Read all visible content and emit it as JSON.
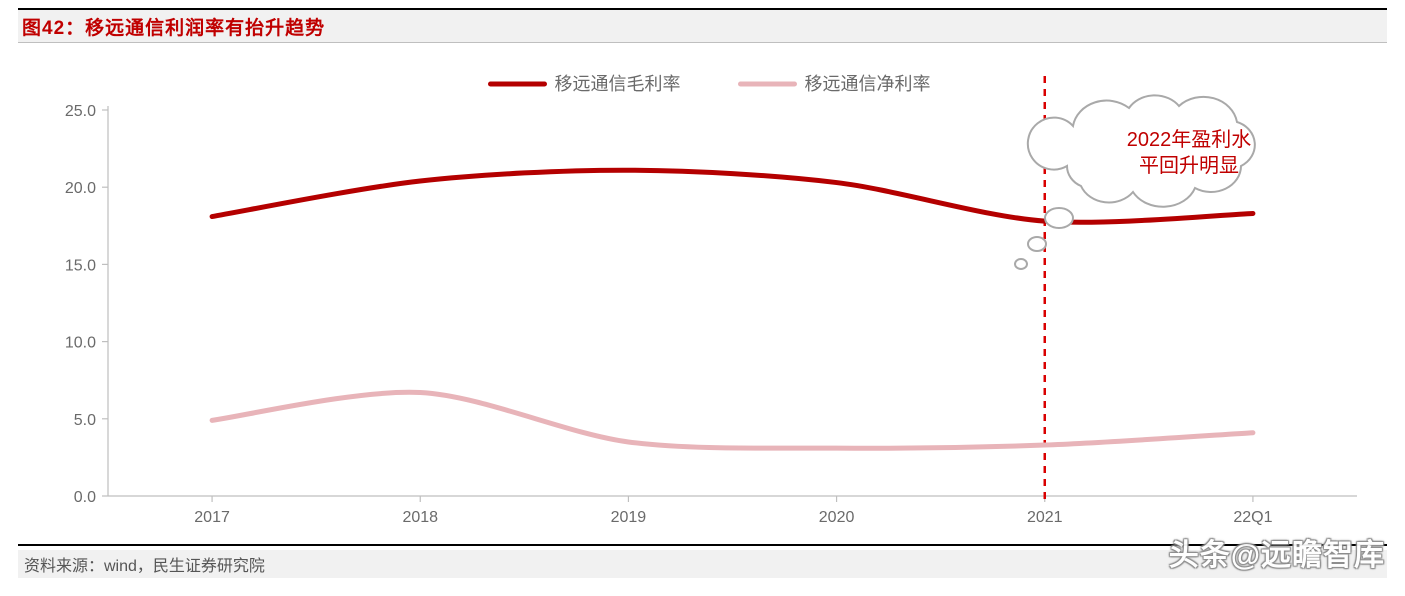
{
  "title": "图42：移远通信利润率有抬升趋势",
  "source": "资料来源：wind，民生证券研究院",
  "watermark": "头条@远瞻智库",
  "chart": {
    "type": "line",
    "background_color": "#ffffff",
    "axis_color": "#bfbfbf",
    "tick_text_color": "#6a6a6a",
    "categories": [
      "2017",
      "2018",
      "2019",
      "2020",
      "2021",
      "22Q1"
    ],
    "ylim": [
      0.0,
      25.0
    ],
    "ytick_step": 5.0,
    "y_ticks": [
      "0.0",
      "5.0",
      "10.0",
      "15.0",
      "20.0",
      "25.0"
    ],
    "x_axis_offset": 0.5,
    "series": [
      {
        "name": "移远通信毛利率",
        "color": "#B40000",
        "line_width": 5,
        "values": [
          18.1,
          20.4,
          21.1,
          20.3,
          17.8,
          18.3
        ],
        "smooth": true
      },
      {
        "name": "移远通信净利率",
        "color": "#E8B4B9",
        "line_width": 5,
        "values": [
          4.9,
          6.7,
          3.5,
          3.1,
          3.3,
          4.1
        ],
        "smooth": true
      }
    ],
    "vline": {
      "x_index": 4,
      "color": "#D90000",
      "dash": "7,6",
      "width": 2.5
    },
    "annotation": {
      "lines": [
        "2022年盈利水",
        "平回升明显"
      ],
      "text_color": "#C00000",
      "cloud_stroke": "#a9a9a9",
      "cloud_fill": "#ffffff"
    },
    "legend": {
      "items": [
        "移远通信毛利率",
        "移远通信净利率"
      ],
      "colors": [
        "#B40000",
        "#E8B4B9"
      ]
    }
  }
}
